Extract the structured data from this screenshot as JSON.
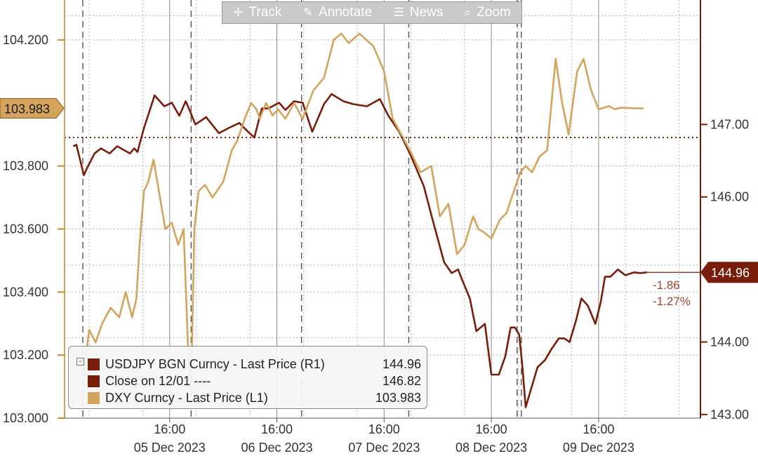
{
  "toolbar": {
    "track": {
      "label": "Track",
      "icon": "crosshair-icon"
    },
    "annotate": {
      "label": "Annotate",
      "icon": "pencil-icon"
    },
    "news": {
      "label": "News",
      "icon": "news-icon"
    },
    "zoom": {
      "label": "Zoom",
      "icon": "magnifier-icon"
    }
  },
  "legend": {
    "rows": [
      {
        "name": "USDJPY BGN Curncy - Last Price (R1)",
        "value": "144.96",
        "color": "#7a1c0a"
      },
      {
        "name": "Close on 12/01 ----",
        "value": "146.82",
        "color": "#7a1c0a"
      },
      {
        "name": "DXY Curncy - Last Price (L1)",
        "value": "103.983",
        "color": "#d4a35c"
      }
    ]
  },
  "chart_data": {
    "type": "line",
    "left_axis": {
      "ylim": [
        103.0,
        104.3
      ],
      "ticks": [
        "104.200",
        "103.800",
        "103.600",
        "103.400",
        "103.200",
        "103.000"
      ],
      "tick_values": [
        104.2,
        103.8,
        103.6,
        103.4,
        103.2,
        103.0
      ],
      "color": "#c98a2e"
    },
    "right_axis": {
      "ylim": [
        142.95,
        148.6
      ],
      "ticks": [
        "147.00",
        "146.00",
        "144.00",
        "143.00"
      ],
      "tick_values": [
        147.0,
        146.0,
        144.0,
        143.0
      ],
      "color": "#7a1c0a"
    },
    "x_ticks": [
      {
        "time": "16:00",
        "date": "05 Dec 2023",
        "x": 1.0
      },
      {
        "time": "16:00",
        "date": "06 Dec 2023",
        "x": 2.0
      },
      {
        "time": "16:00",
        "date": "07 Dec 2023",
        "x": 3.0
      },
      {
        "time": "16:00",
        "date": "08 Dec 2023",
        "x": 4.0
      },
      {
        "time": "16:00",
        "date": "09 Dec 2023",
        "x": 5.0
      }
    ],
    "xlim": [
      0.02,
      5.95
    ],
    "session_breaks": [
      0.19,
      1.2,
      2.23,
      3.23,
      4.24,
      4.28
    ],
    "extra_h_grid_right": [
      148.5,
      146.82,
      145.06,
      144.06
    ],
    "close_line": {
      "value": 146.82,
      "label": "Close on 12/01",
      "color": "#7a1c0a"
    },
    "left_badge": {
      "value": 103.983,
      "label": "103.983",
      "color": "#d4a35c"
    },
    "right_badge": {
      "value": 144.96,
      "label": "144.96",
      "color": "#7a1c0a"
    },
    "change_labels": [
      "-1.86",
      "-1.27%"
    ],
    "series": [
      {
        "name": "USDJPY BGN Curncy - Last Price (R1)",
        "axis": "right",
        "color": "#7a1c0a",
        "x": [
          0.1,
          0.13,
          0.2,
          0.23,
          0.3,
          0.36,
          0.44,
          0.51,
          0.57,
          0.63,
          0.67,
          0.7,
          0.76,
          0.86,
          0.95,
          1.02,
          1.09,
          1.15,
          1.19,
          1.24,
          1.34,
          1.46,
          1.55,
          1.65,
          1.73,
          1.79,
          1.86,
          1.92,
          2.02,
          2.08,
          2.16,
          2.24,
          2.33,
          2.44,
          2.51,
          2.62,
          2.71,
          2.84,
          2.96,
          3.04,
          3.14,
          3.24,
          3.37,
          3.45,
          3.56,
          3.63,
          3.69,
          3.73,
          3.8,
          3.86,
          3.94,
          4.0,
          4.07,
          4.13,
          4.18,
          4.22,
          4.26,
          4.29,
          4.32,
          4.37,
          4.43,
          4.5,
          4.56,
          4.63,
          4.68,
          4.73,
          4.79,
          4.84,
          4.9,
          4.97,
          5.02,
          5.06,
          5.11,
          5.18,
          5.25,
          5.33,
          5.39,
          5.45
        ],
        "y": [
          146.7,
          146.72,
          146.3,
          146.4,
          146.6,
          146.67,
          146.6,
          146.7,
          146.65,
          146.6,
          146.67,
          146.62,
          146.95,
          147.4,
          147.25,
          147.3,
          147.12,
          147.32,
          147.18,
          147.0,
          147.1,
          146.88,
          146.95,
          147.02,
          146.9,
          146.82,
          147.22,
          147.22,
          147.3,
          147.2,
          147.32,
          147.3,
          146.9,
          147.28,
          147.42,
          147.32,
          147.28,
          147.25,
          147.35,
          147.12,
          146.9,
          146.6,
          146.15,
          145.7,
          145.1,
          144.95,
          145.0,
          144.85,
          144.6,
          144.15,
          144.25,
          143.55,
          143.55,
          143.8,
          144.2,
          144.2,
          144.1,
          143.65,
          143.1,
          143.35,
          143.65,
          143.75,
          143.9,
          144.05,
          144.05,
          144.0,
          144.3,
          144.6,
          144.5,
          144.25,
          144.55,
          144.9,
          144.9,
          145.0,
          144.92,
          144.96,
          144.95,
          144.96
        ]
      },
      {
        "name": "DXY Curncy - Last Price (L1)",
        "axis": "left",
        "color": "#d4a35c",
        "x": [
          0.2,
          0.25,
          0.31,
          0.37,
          0.45,
          0.53,
          0.59,
          0.65,
          0.69,
          0.72,
          0.76,
          0.8,
          0.85,
          0.9,
          0.96,
          1.02,
          1.08,
          1.13,
          1.18,
          1.2,
          1.23,
          1.27,
          1.33,
          1.4,
          1.5,
          1.58,
          1.63,
          1.7,
          1.76,
          1.81,
          1.84,
          1.9,
          1.96,
          2.01,
          2.08,
          2.16,
          2.24,
          2.34,
          2.44,
          2.53,
          2.6,
          2.67,
          2.77,
          2.9,
          3.0,
          3.08,
          3.16,
          3.24,
          3.34,
          3.44,
          3.52,
          3.6,
          3.68,
          3.75,
          3.83,
          3.88,
          3.93,
          4.0,
          4.08,
          4.14,
          4.2,
          4.27,
          4.32,
          4.38,
          4.45,
          4.52,
          4.6,
          4.66,
          4.72,
          4.8,
          4.86,
          4.93,
          5.0,
          5.05,
          5.1,
          5.15,
          5.21,
          5.28,
          5.35,
          5.42
        ],
        "y": [
          103.15,
          103.28,
          103.24,
          103.3,
          103.35,
          103.32,
          103.4,
          103.32,
          103.38,
          103.55,
          103.72,
          103.75,
          103.82,
          103.72,
          103.6,
          103.62,
          103.55,
          103.6,
          103.15,
          103.08,
          103.6,
          103.72,
          103.74,
          103.7,
          103.75,
          103.85,
          103.88,
          103.95,
          104.0,
          103.98,
          103.95,
          104.0,
          103.96,
          103.98,
          103.95,
          104.0,
          103.95,
          104.04,
          104.08,
          104.2,
          104.22,
          104.19,
          104.22,
          104.18,
          104.1,
          103.95,
          103.9,
          103.85,
          103.78,
          103.8,
          103.64,
          103.68,
          103.52,
          103.55,
          103.64,
          103.6,
          103.59,
          103.57,
          103.63,
          103.65,
          103.71,
          103.78,
          103.8,
          103.78,
          103.83,
          103.85,
          104.14,
          104.0,
          103.9,
          104.1,
          104.14,
          104.04,
          103.98,
          103.985,
          103.99,
          103.98,
          103.985,
          103.984,
          103.983,
          103.983
        ]
      }
    ]
  }
}
